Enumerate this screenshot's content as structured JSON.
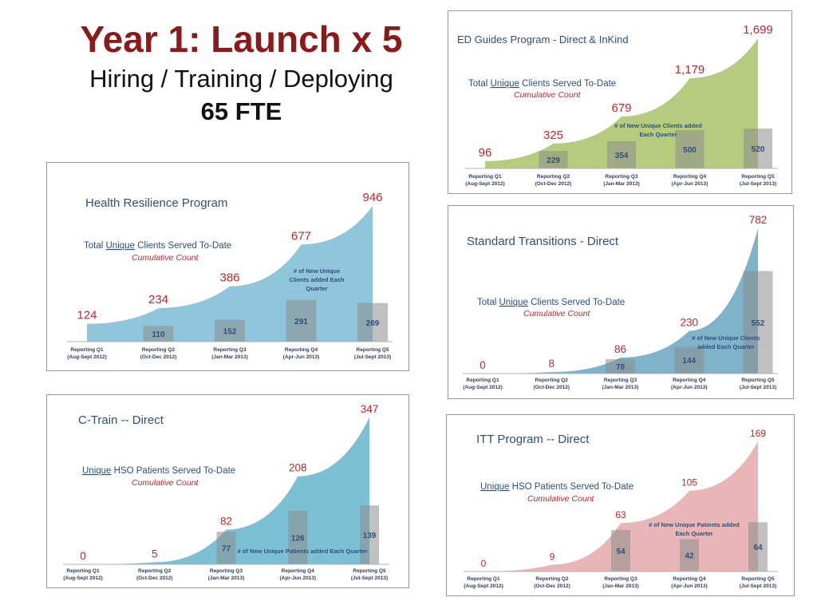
{
  "header": {
    "title": "Year 1: Launch x 5",
    "subtitle": "Hiring / Training / Deploying",
    "fte": "65 FTE"
  },
  "chart_data": [
    {
      "type": "area",
      "title": "ED Guides Program - Direct & InKind",
      "subtitle": "Total Unique Clients Served To-Date",
      "subtitle_parts": [
        "Total ",
        "Unique",
        " Clients Served To-Date"
      ],
      "note": "Cumulative Count",
      "bar_label": [
        "# of New Unique Clients added",
        "Each Quarter"
      ],
      "categories": [
        "Reporting Q1",
        "Reporting Q2",
        "Reporting Q3",
        "Reporting Q4",
        "Reporting Q5"
      ],
      "periods": [
        "(Aug-Sept 2012)",
        "(Oct-Dec 2012)",
        "(Jan-Mar 2013)",
        "(Apr-Jun 2013)",
        "(Jul-Sept 2013)"
      ],
      "cumulative": [
        96,
        325,
        679,
        1179,
        1699
      ],
      "cumulative_labels": [
        "96",
        "325",
        "679",
        "1,179",
        "1,699"
      ],
      "new_per_quarter": [
        null,
        229,
        354,
        500,
        520
      ],
      "area_color": "#b5cc7e",
      "label_color": "#c0282d",
      "ymax": 1699
    },
    {
      "type": "area",
      "title": "Health Resilience Program",
      "subtitle": "Total Unique Clients Served To-Date",
      "subtitle_parts": [
        "Total ",
        "Unique",
        " Clients Served To-Date"
      ],
      "note": "Cumulative Count",
      "bar_label": [
        "# of New Unique",
        "Clients added Each",
        "Quarter"
      ],
      "categories": [
        "Reporting Q1",
        "Reporting Q2",
        "Reporting Q3",
        "Reporting Q4",
        "Reporting Q5"
      ],
      "periods": [
        "(Aug-Sept 2012)",
        "(Oct-Dec 2012)",
        "(Jan-Mar 2013)",
        "(Apr-Jun 2013)",
        "(Jul-Sept 2013)"
      ],
      "cumulative": [
        124,
        234,
        386,
        677,
        946
      ],
      "cumulative_labels": [
        "124",
        "234",
        "386",
        "677",
        "946"
      ],
      "new_per_quarter": [
        null,
        110,
        152,
        291,
        269
      ],
      "area_color": "#8fc6dc",
      "label_color": "#c0282d",
      "ymax": 946
    },
    {
      "type": "area",
      "title": "Standard Transitions - Direct",
      "subtitle": "Total Unique Clients Served To-Date",
      "subtitle_parts": [
        "Total ",
        "Unique",
        " Clients Served To-Date"
      ],
      "note": "Cumulative Count",
      "bar_label": [
        "# of New Unique Clients",
        "added Each Quarter"
      ],
      "categories": [
        "Reporting Q1",
        "Reporting Q2",
        "Reporting Q3",
        "Reporting Q4",
        "Reporting Q5"
      ],
      "periods": [
        "(Aug-Sept 2012)",
        "(Oct-Dec 2012)",
        "(Jan-Mar 2013)",
        "(Apr-Jun 2013)",
        "(Jul-Sept 2013)"
      ],
      "cumulative": [
        0,
        8,
        86,
        230,
        782
      ],
      "cumulative_labels": [
        "0",
        "8",
        "86",
        "230",
        "782"
      ],
      "new_per_quarter": [
        null,
        null,
        78,
        144,
        552
      ],
      "area_color": "#7fb3c9",
      "label_color": "#c0282d",
      "ymax": 782
    },
    {
      "type": "area",
      "title": "C-Train -- Direct",
      "subtitle": "Unique HSO Patients Served To-Date",
      "subtitle_parts": [
        "",
        "Unique",
        " HSO Patients Served To-Date"
      ],
      "note": "Cumulative Count",
      "bar_label": [
        "# of New Unique Patients added Each Quarter"
      ],
      "categories": [
        "Reporting Q1",
        "Reporting Q2",
        "Reporting Q3",
        "Reporting Q4",
        "Reporting Q5"
      ],
      "periods": [
        "(Aug-Sept 2012)",
        "(Oct-Dec 2012)",
        "(Jan-Mar 2013)",
        "(Apr-Jun 2013)",
        "(Jul-Sept 2013)"
      ],
      "cumulative": [
        0,
        5,
        82,
        208,
        347
      ],
      "cumulative_labels": [
        "0",
        "5",
        "82",
        "208",
        "347"
      ],
      "new_per_quarter": [
        null,
        null,
        77,
        126,
        139
      ],
      "area_color": "#7cc0d4",
      "label_color": "#c0282d",
      "ymax": 347
    },
    {
      "type": "area",
      "title": "ITT Program -- Direct",
      "subtitle": "Unique HSO Patients Served To-Date",
      "subtitle_parts": [
        "",
        "Unique",
        " HSO Patients Served To-Date"
      ],
      "note": "Cumulative Count",
      "bar_label": [
        "# of New Unique Patients added",
        "Each Quarter"
      ],
      "categories": [
        "Reporting Q1",
        "Reporting Q2",
        "Reporting Q3",
        "Reporting Q4",
        "Reporting Q5"
      ],
      "periods": [
        "(Aug-Sept 2012)",
        "(Oct-Dec 2012)",
        "(Jan-Mar 2013)",
        "(Apr-Jun 2013)",
        "(Jul-Sept 2013)"
      ],
      "cumulative": [
        0,
        9,
        63,
        105,
        169
      ],
      "cumulative_labels": [
        "0",
        "9",
        "63",
        "105",
        "169"
      ],
      "new_per_quarter": [
        null,
        null,
        54,
        42,
        64
      ],
      "area_color": "#e8b6b6",
      "label_color": "#c0282d",
      "ymax": 169
    }
  ]
}
